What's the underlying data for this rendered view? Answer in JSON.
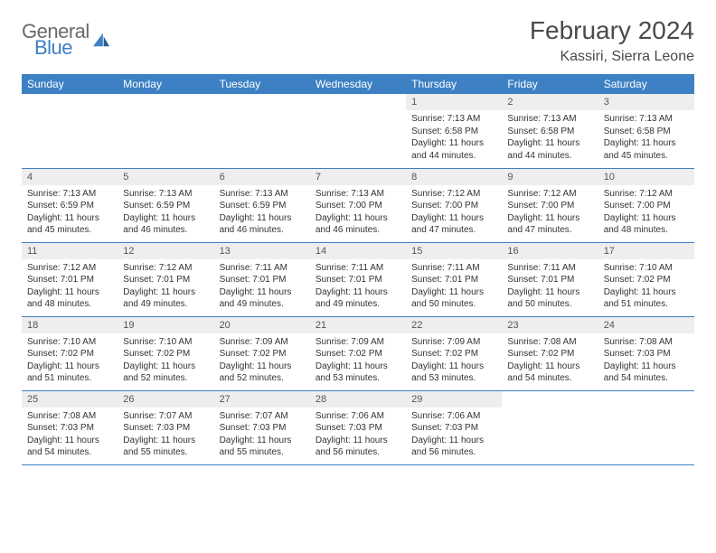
{
  "brand": {
    "word1": "General",
    "word2": "Blue"
  },
  "title": "February 2024",
  "location": "Kassiri, Sierra Leone",
  "colors": {
    "header_bg": "#3d80c3",
    "header_text": "#ffffff",
    "daynum_bg": "#eeeeee",
    "border": "#3d80c3",
    "text": "#333333",
    "logo_gray": "#6a6a6a",
    "logo_blue": "#3d80c3"
  },
  "fonts": {
    "title_pt": 28,
    "location_pt": 16,
    "header_pt": 12,
    "daynum_pt": 11,
    "body_pt": 10
  },
  "day_headers": [
    "Sunday",
    "Monday",
    "Tuesday",
    "Wednesday",
    "Thursday",
    "Friday",
    "Saturday"
  ],
  "weeks": [
    [
      null,
      null,
      null,
      null,
      {
        "n": "1",
        "sunrise": "7:13 AM",
        "sunset": "6:58 PM",
        "daylight": "11 hours and 44 minutes."
      },
      {
        "n": "2",
        "sunrise": "7:13 AM",
        "sunset": "6:58 PM",
        "daylight": "11 hours and 44 minutes."
      },
      {
        "n": "3",
        "sunrise": "7:13 AM",
        "sunset": "6:58 PM",
        "daylight": "11 hours and 45 minutes."
      }
    ],
    [
      {
        "n": "4",
        "sunrise": "7:13 AM",
        "sunset": "6:59 PM",
        "daylight": "11 hours and 45 minutes."
      },
      {
        "n": "5",
        "sunrise": "7:13 AM",
        "sunset": "6:59 PM",
        "daylight": "11 hours and 46 minutes."
      },
      {
        "n": "6",
        "sunrise": "7:13 AM",
        "sunset": "6:59 PM",
        "daylight": "11 hours and 46 minutes."
      },
      {
        "n": "7",
        "sunrise": "7:13 AM",
        "sunset": "7:00 PM",
        "daylight": "11 hours and 46 minutes."
      },
      {
        "n": "8",
        "sunrise": "7:12 AM",
        "sunset": "7:00 PM",
        "daylight": "11 hours and 47 minutes."
      },
      {
        "n": "9",
        "sunrise": "7:12 AM",
        "sunset": "7:00 PM",
        "daylight": "11 hours and 47 minutes."
      },
      {
        "n": "10",
        "sunrise": "7:12 AM",
        "sunset": "7:00 PM",
        "daylight": "11 hours and 48 minutes."
      }
    ],
    [
      {
        "n": "11",
        "sunrise": "7:12 AM",
        "sunset": "7:01 PM",
        "daylight": "11 hours and 48 minutes."
      },
      {
        "n": "12",
        "sunrise": "7:12 AM",
        "sunset": "7:01 PM",
        "daylight": "11 hours and 49 minutes."
      },
      {
        "n": "13",
        "sunrise": "7:11 AM",
        "sunset": "7:01 PM",
        "daylight": "11 hours and 49 minutes."
      },
      {
        "n": "14",
        "sunrise": "7:11 AM",
        "sunset": "7:01 PM",
        "daylight": "11 hours and 49 minutes."
      },
      {
        "n": "15",
        "sunrise": "7:11 AM",
        "sunset": "7:01 PM",
        "daylight": "11 hours and 50 minutes."
      },
      {
        "n": "16",
        "sunrise": "7:11 AM",
        "sunset": "7:01 PM",
        "daylight": "11 hours and 50 minutes."
      },
      {
        "n": "17",
        "sunrise": "7:10 AM",
        "sunset": "7:02 PM",
        "daylight": "11 hours and 51 minutes."
      }
    ],
    [
      {
        "n": "18",
        "sunrise": "7:10 AM",
        "sunset": "7:02 PM",
        "daylight": "11 hours and 51 minutes."
      },
      {
        "n": "19",
        "sunrise": "7:10 AM",
        "sunset": "7:02 PM",
        "daylight": "11 hours and 52 minutes."
      },
      {
        "n": "20",
        "sunrise": "7:09 AM",
        "sunset": "7:02 PM",
        "daylight": "11 hours and 52 minutes."
      },
      {
        "n": "21",
        "sunrise": "7:09 AM",
        "sunset": "7:02 PM",
        "daylight": "11 hours and 53 minutes."
      },
      {
        "n": "22",
        "sunrise": "7:09 AM",
        "sunset": "7:02 PM",
        "daylight": "11 hours and 53 minutes."
      },
      {
        "n": "23",
        "sunrise": "7:08 AM",
        "sunset": "7:02 PM",
        "daylight": "11 hours and 54 minutes."
      },
      {
        "n": "24",
        "sunrise": "7:08 AM",
        "sunset": "7:03 PM",
        "daylight": "11 hours and 54 minutes."
      }
    ],
    [
      {
        "n": "25",
        "sunrise": "7:08 AM",
        "sunset": "7:03 PM",
        "daylight": "11 hours and 54 minutes."
      },
      {
        "n": "26",
        "sunrise": "7:07 AM",
        "sunset": "7:03 PM",
        "daylight": "11 hours and 55 minutes."
      },
      {
        "n": "27",
        "sunrise": "7:07 AM",
        "sunset": "7:03 PM",
        "daylight": "11 hours and 55 minutes."
      },
      {
        "n": "28",
        "sunrise": "7:06 AM",
        "sunset": "7:03 PM",
        "daylight": "11 hours and 56 minutes."
      },
      {
        "n": "29",
        "sunrise": "7:06 AM",
        "sunset": "7:03 PM",
        "daylight": "11 hours and 56 minutes."
      },
      null,
      null
    ]
  ],
  "labels": {
    "sunrise": "Sunrise:",
    "sunset": "Sunset:",
    "daylight": "Daylight:"
  }
}
